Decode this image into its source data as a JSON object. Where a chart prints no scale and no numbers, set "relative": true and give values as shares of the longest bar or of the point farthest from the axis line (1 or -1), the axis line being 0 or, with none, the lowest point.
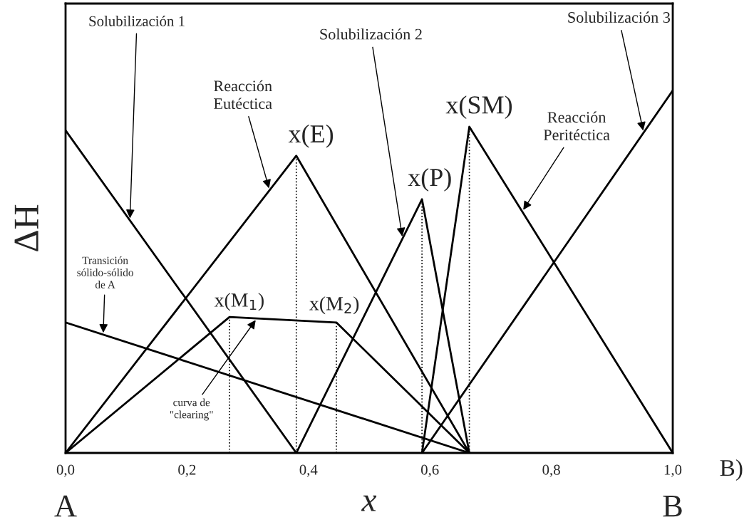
{
  "chart_data": {
    "type": "line",
    "relative": true,
    "xlabel": "x",
    "ylabel": "ΔH",
    "line_style": "solid",
    "marker": "none",
    "grid": false,
    "legend": false,
    "tick_labels": "x",
    "xlim": [
      0,
      1
    ],
    "xticks": [
      {
        "value": 0,
        "label": "0,0"
      },
      {
        "value": 0.2,
        "label": "0,2"
      },
      {
        "value": 0.4,
        "label": "0,4"
      },
      {
        "value": 0.6,
        "label": "0,6"
      },
      {
        "value": 0.8,
        "label": "0,8"
      },
      {
        "value": 1,
        "label": "1,0"
      }
    ],
    "series": [
      {
        "color": "#000000",
        "x": [
          0,
          0.38
        ],
        "values": [
          0.89,
          0
        ]
      },
      {
        "color": "#000000",
        "x": [
          0,
          0.38,
          0.665
        ],
        "values": [
          0,
          0.82,
          0
        ]
      },
      {
        "color": "#000000",
        "x": [
          0.38,
          0.587,
          0.665
        ],
        "values": [
          0,
          0.7,
          0
        ]
      },
      {
        "color": "#000000",
        "x": [
          0.587,
          0.665,
          1.0
        ],
        "values": [
          0,
          0.9,
          0
        ]
      },
      {
        "color": "#000000",
        "x": [
          0.587,
          1.0
        ],
        "values": [
          0,
          1
        ]
      },
      {
        "color": "#000000",
        "x": [
          0,
          0.27,
          0.446,
          0.665
        ],
        "values": [
          0,
          0.375,
          0.36,
          0
        ]
      },
      {
        "color": "#000000",
        "x": [
          0,
          0.665
        ],
        "values": [
          0.36,
          0
        ]
      },
      {
        "color": "#000000",
        "line_style": "dotted",
        "x": [
          0.27,
          0.27
        ],
        "values": [
          0,
          0.375
        ]
      },
      {
        "color": "#000000",
        "line_style": "dotted",
        "x": [
          0.38,
          0.38
        ],
        "values": [
          0,
          0.82
        ]
      },
      {
        "color": "#000000",
        "line_style": "dotted",
        "x": [
          0.446,
          0.446
        ],
        "values": [
          0,
          0.36
        ]
      },
      {
        "color": "#000000",
        "line_style": "dotted",
        "x": [
          0.587,
          0.587
        ],
        "values": [
          0,
          0.7
        ]
      },
      {
        "color": "#000000",
        "line_style": "dotted",
        "x": [
          0.665,
          0.665
        ],
        "values": [
          0,
          0.9
        ]
      }
    ],
    "annotations": [
      {
        "text": "Solubilización 1",
        "x": 0.106,
        "y": 0.642
      },
      {
        "text": "Reacción\nEutéctica",
        "x": 0.336,
        "y": 0.725
      },
      {
        "text": "Solubilización 2",
        "x": 0.555,
        "y": 0.592
      },
      {
        "text": "Solubilización 3",
        "x": 0.952,
        "y": 0.884
      },
      {
        "text": "Reacción\nPeritéctica",
        "x": 0.752,
        "y": 0.666
      },
      {
        "text": "Transición\nsólido-sólido\nde A",
        "x": 0.062,
        "y": 0.326
      },
      {
        "text": "curva de\n\"clearing\"",
        "x": 0.315,
        "y": 0.371
      },
      {
        "text": "x(E)",
        "x": 0.38,
        "y": 0.82
      },
      {
        "text": "x(P)",
        "x": 0.587,
        "y": 0.7
      },
      {
        "text": "x(SM)",
        "x": 0.665,
        "y": 0.9
      },
      {
        "text": "x(M$_{1}$)",
        "x": 0.27,
        "y": 0.375
      },
      {
        "text": "x(M$_{2}$)",
        "x": 0.446,
        "y": 0.36
      },
      {
        "text": "A",
        "x": 0,
        "y": 0
      },
      {
        "text": "B",
        "x": 1,
        "y": 0
      },
      "B)"
    ]
  }
}
